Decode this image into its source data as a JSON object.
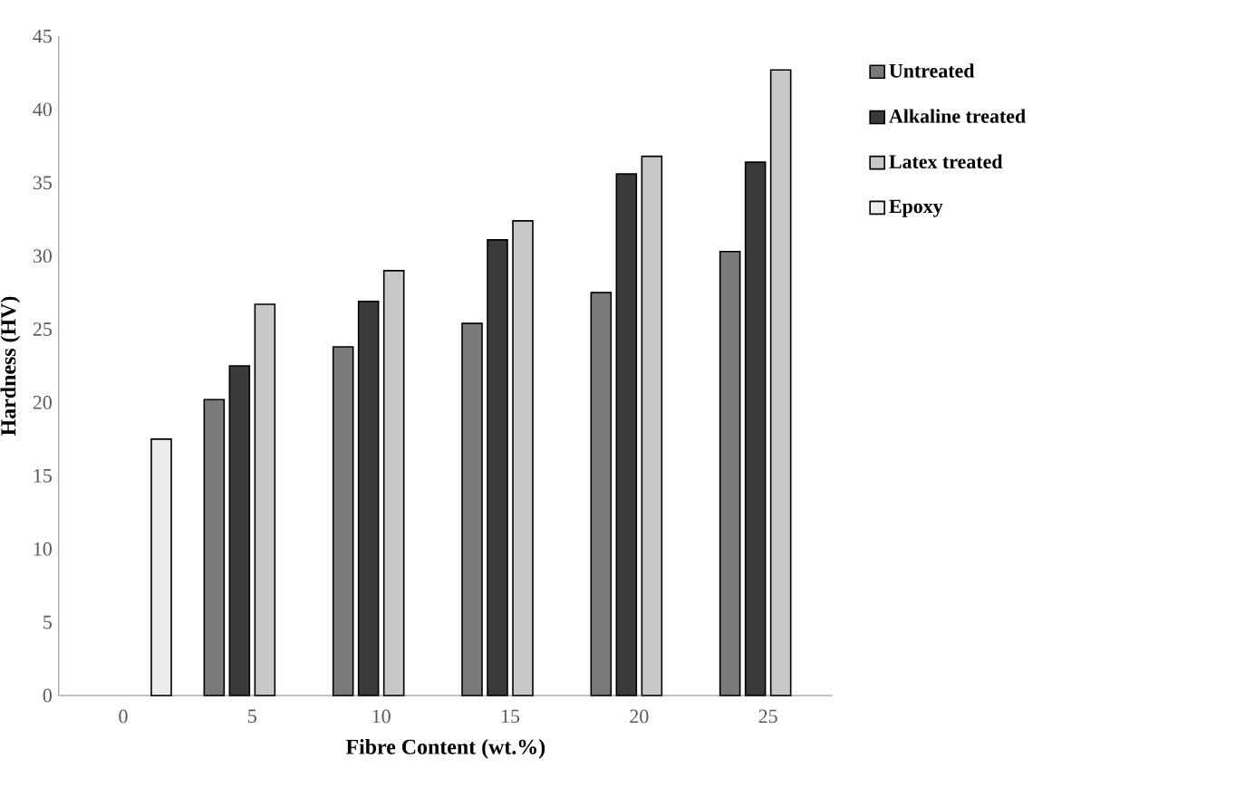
{
  "chart_data": {
    "type": "bar",
    "xlabel": "Fibre Content (wt.%)",
    "ylabel": "Hardness (HV)",
    "categories": [
      "0",
      "5",
      "10",
      "15",
      "20",
      "25"
    ],
    "series": [
      {
        "name": "Untreated",
        "color": "#7a7a7a",
        "values": [
          null,
          20.2,
          23.8,
          25.4,
          27.5,
          30.3
        ]
      },
      {
        "name": "Alkaline treated",
        "color": "#3a3a3a",
        "values": [
          null,
          22.5,
          26.9,
          31.1,
          35.6,
          36.4
        ]
      },
      {
        "name": "Latex treated",
        "color": "#c8c8c8",
        "values": [
          null,
          26.7,
          29.0,
          32.4,
          36.8,
          42.7
        ]
      },
      {
        "name": "Epoxy",
        "color": "#ececec",
        "values": [
          17.5,
          null,
          null,
          null,
          null,
          null
        ]
      }
    ],
    "ylim": [
      0,
      45
    ],
    "yticks": [
      0,
      5,
      10,
      15,
      20,
      25,
      30,
      35,
      40,
      45
    ],
    "grid": false,
    "legend": "right"
  }
}
